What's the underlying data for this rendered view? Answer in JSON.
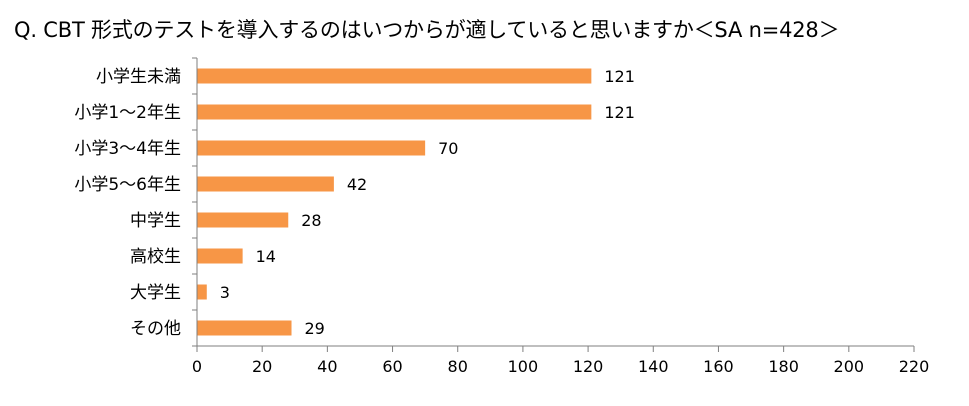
{
  "chart_data": {
    "type": "bar",
    "orientation": "horizontal",
    "title": "Q. CBT 形式のテストを導入するのはいつからが適していると思いますか＜SA n=428＞",
    "categories": [
      "小学生未満",
      "小学1～2年生",
      "小学3～4年生",
      "小学5～6年生",
      "中学生",
      "高校生",
      "大学生",
      "その他"
    ],
    "values": [
      121,
      121,
      70,
      42,
      28,
      14,
      3,
      29
    ],
    "xlim": [
      0,
      220
    ],
    "xticks": [
      0,
      20,
      40,
      60,
      80,
      100,
      120,
      140,
      160,
      180,
      200,
      220
    ],
    "xlabel": "",
    "ylabel": "",
    "grid": false,
    "bar_color": "#F79646",
    "legend": "none"
  }
}
